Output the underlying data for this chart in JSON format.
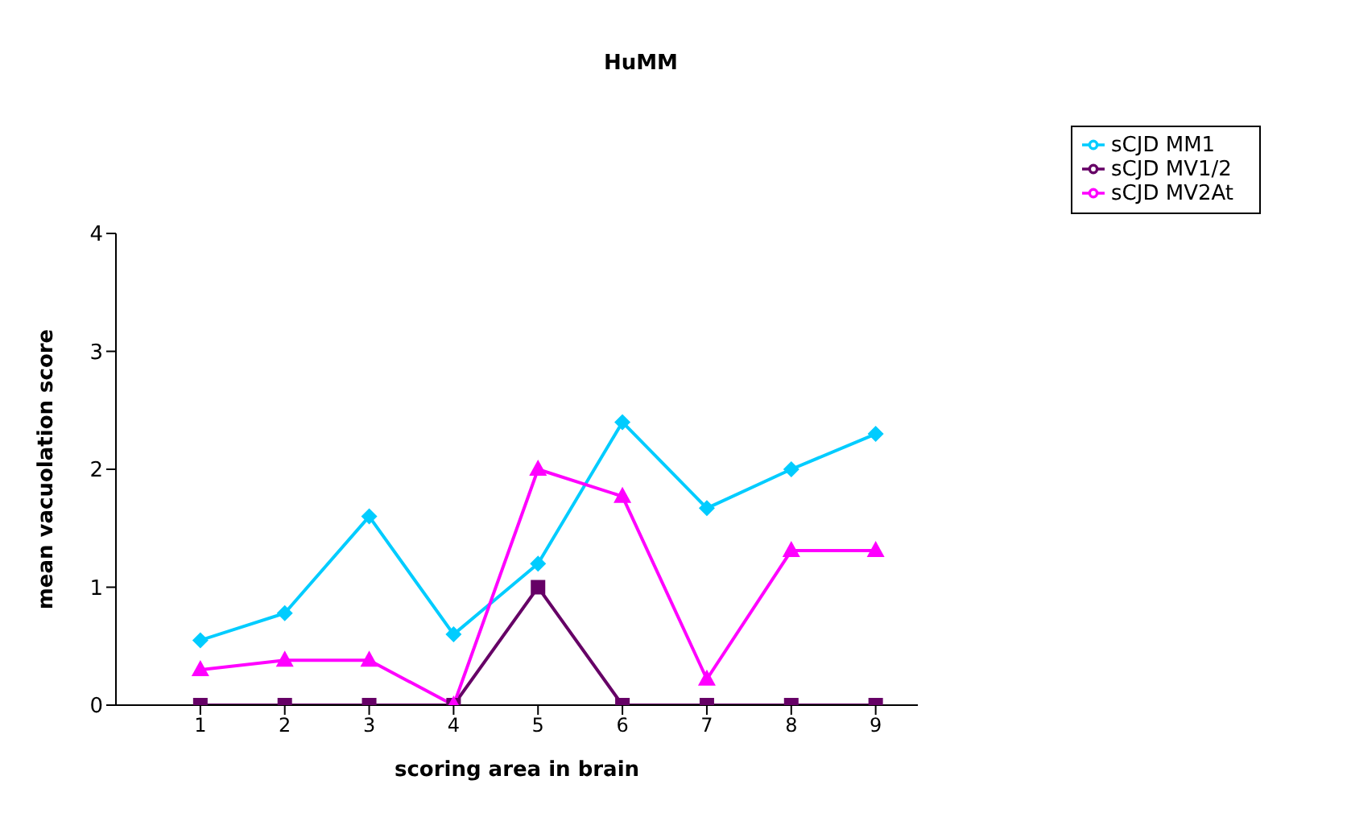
{
  "chart_data": {
    "type": "line",
    "title": "HuMM",
    "xlabel": "scoring area in brain",
    "ylabel": "mean vacuolation score",
    "x": [
      1,
      2,
      3,
      4,
      5,
      6,
      7,
      8,
      9
    ],
    "xlim": [
      0,
      9.5
    ],
    "xticks": [
      1,
      2,
      3,
      4,
      5,
      6,
      7,
      8,
      9
    ],
    "ylim": [
      0,
      4
    ],
    "yticks": [
      0,
      1,
      2,
      3,
      4
    ],
    "grid": false,
    "legend": "top right",
    "line_style": "solid",
    "series": [
      {
        "name": "sCJD MM1",
        "color": "#00ccff",
        "marker": "diamond",
        "values": [
          0.55,
          0.78,
          1.6,
          0.6,
          1.2,
          2.4,
          1.67,
          2.0,
          2.3
        ]
      },
      {
        "name": "sCJD MV1/2",
        "color": "#660066",
        "marker": "square",
        "values": [
          0,
          0,
          0,
          0,
          1,
          0,
          0,
          0,
          0
        ]
      },
      {
        "name": "sCJD MV2At",
        "color": "#ff00ff",
        "marker": "triangle",
        "values": [
          0.3,
          0.38,
          0.38,
          0,
          2.0,
          1.77,
          0.22,
          1.31,
          1.31
        ]
      }
    ]
  }
}
